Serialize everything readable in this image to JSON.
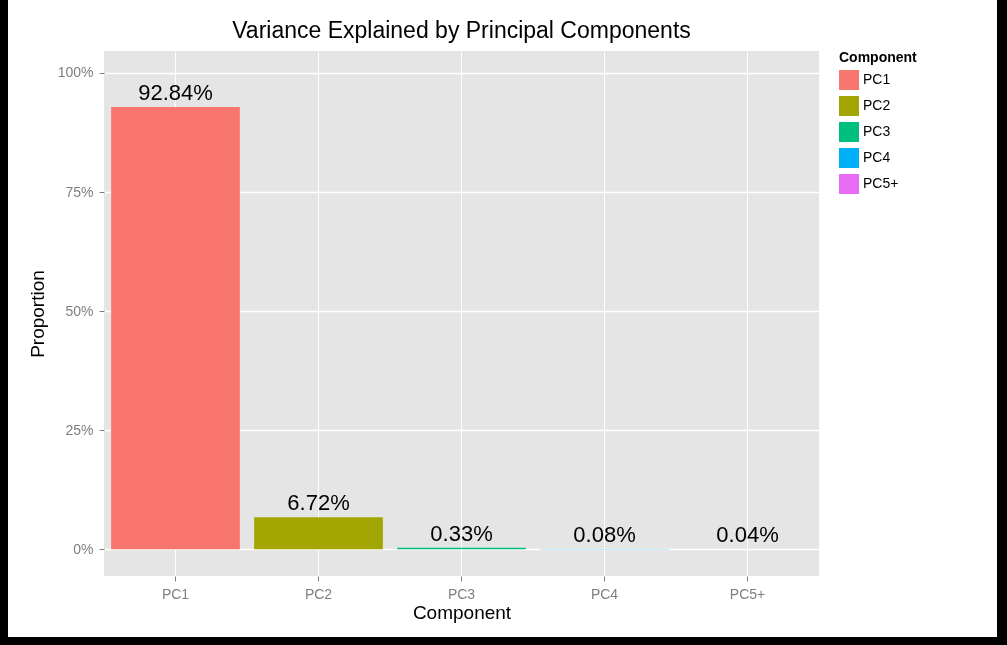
{
  "chart_data": {
    "type": "bar",
    "title": "Variance Explained by Principal Components",
    "xlabel": "Component",
    "ylabel": "Proportion",
    "legend_title": "Component",
    "categories": [
      "PC1",
      "PC2",
      "PC3",
      "PC4",
      "PC5+"
    ],
    "series": [
      {
        "name": "PC1",
        "color": "#f8766d",
        "values": [
          92.84,
          null,
          null,
          null,
          null
        ],
        "value_labels": [
          "92.84%",
          null,
          null,
          null,
          null
        ]
      },
      {
        "name": "PC2",
        "color": "#a3a500",
        "values": [
          null,
          6.72,
          null,
          null,
          null
        ],
        "value_labels": [
          null,
          "6.72%",
          null,
          null,
          null
        ]
      },
      {
        "name": "PC3",
        "color": "#00bf7d",
        "values": [
          null,
          null,
          0.33,
          null,
          null
        ],
        "value_labels": [
          null,
          null,
          "0.33%",
          null,
          null
        ]
      },
      {
        "name": "PC4",
        "color": "#00b0f6",
        "values": [
          null,
          null,
          null,
          0.08,
          null
        ],
        "value_labels": [
          null,
          null,
          null,
          "0.08%",
          null
        ]
      },
      {
        "name": "PC5+",
        "color": "#e76bf3",
        "values": [
          null,
          null,
          null,
          null,
          0.04
        ],
        "value_labels": [
          null,
          null,
          null,
          null,
          "0.04%"
        ]
      }
    ],
    "ylim": [
      -5.6,
      104.6
    ],
    "yticks": [
      {
        "value": 0,
        "label": "0%"
      },
      {
        "value": 25,
        "label": "25%"
      },
      {
        "value": 50,
        "label": "50%"
      },
      {
        "value": 75,
        "label": "75%"
      },
      {
        "value": 100,
        "label": "100%"
      }
    ],
    "grid": true,
    "legend": "right"
  }
}
